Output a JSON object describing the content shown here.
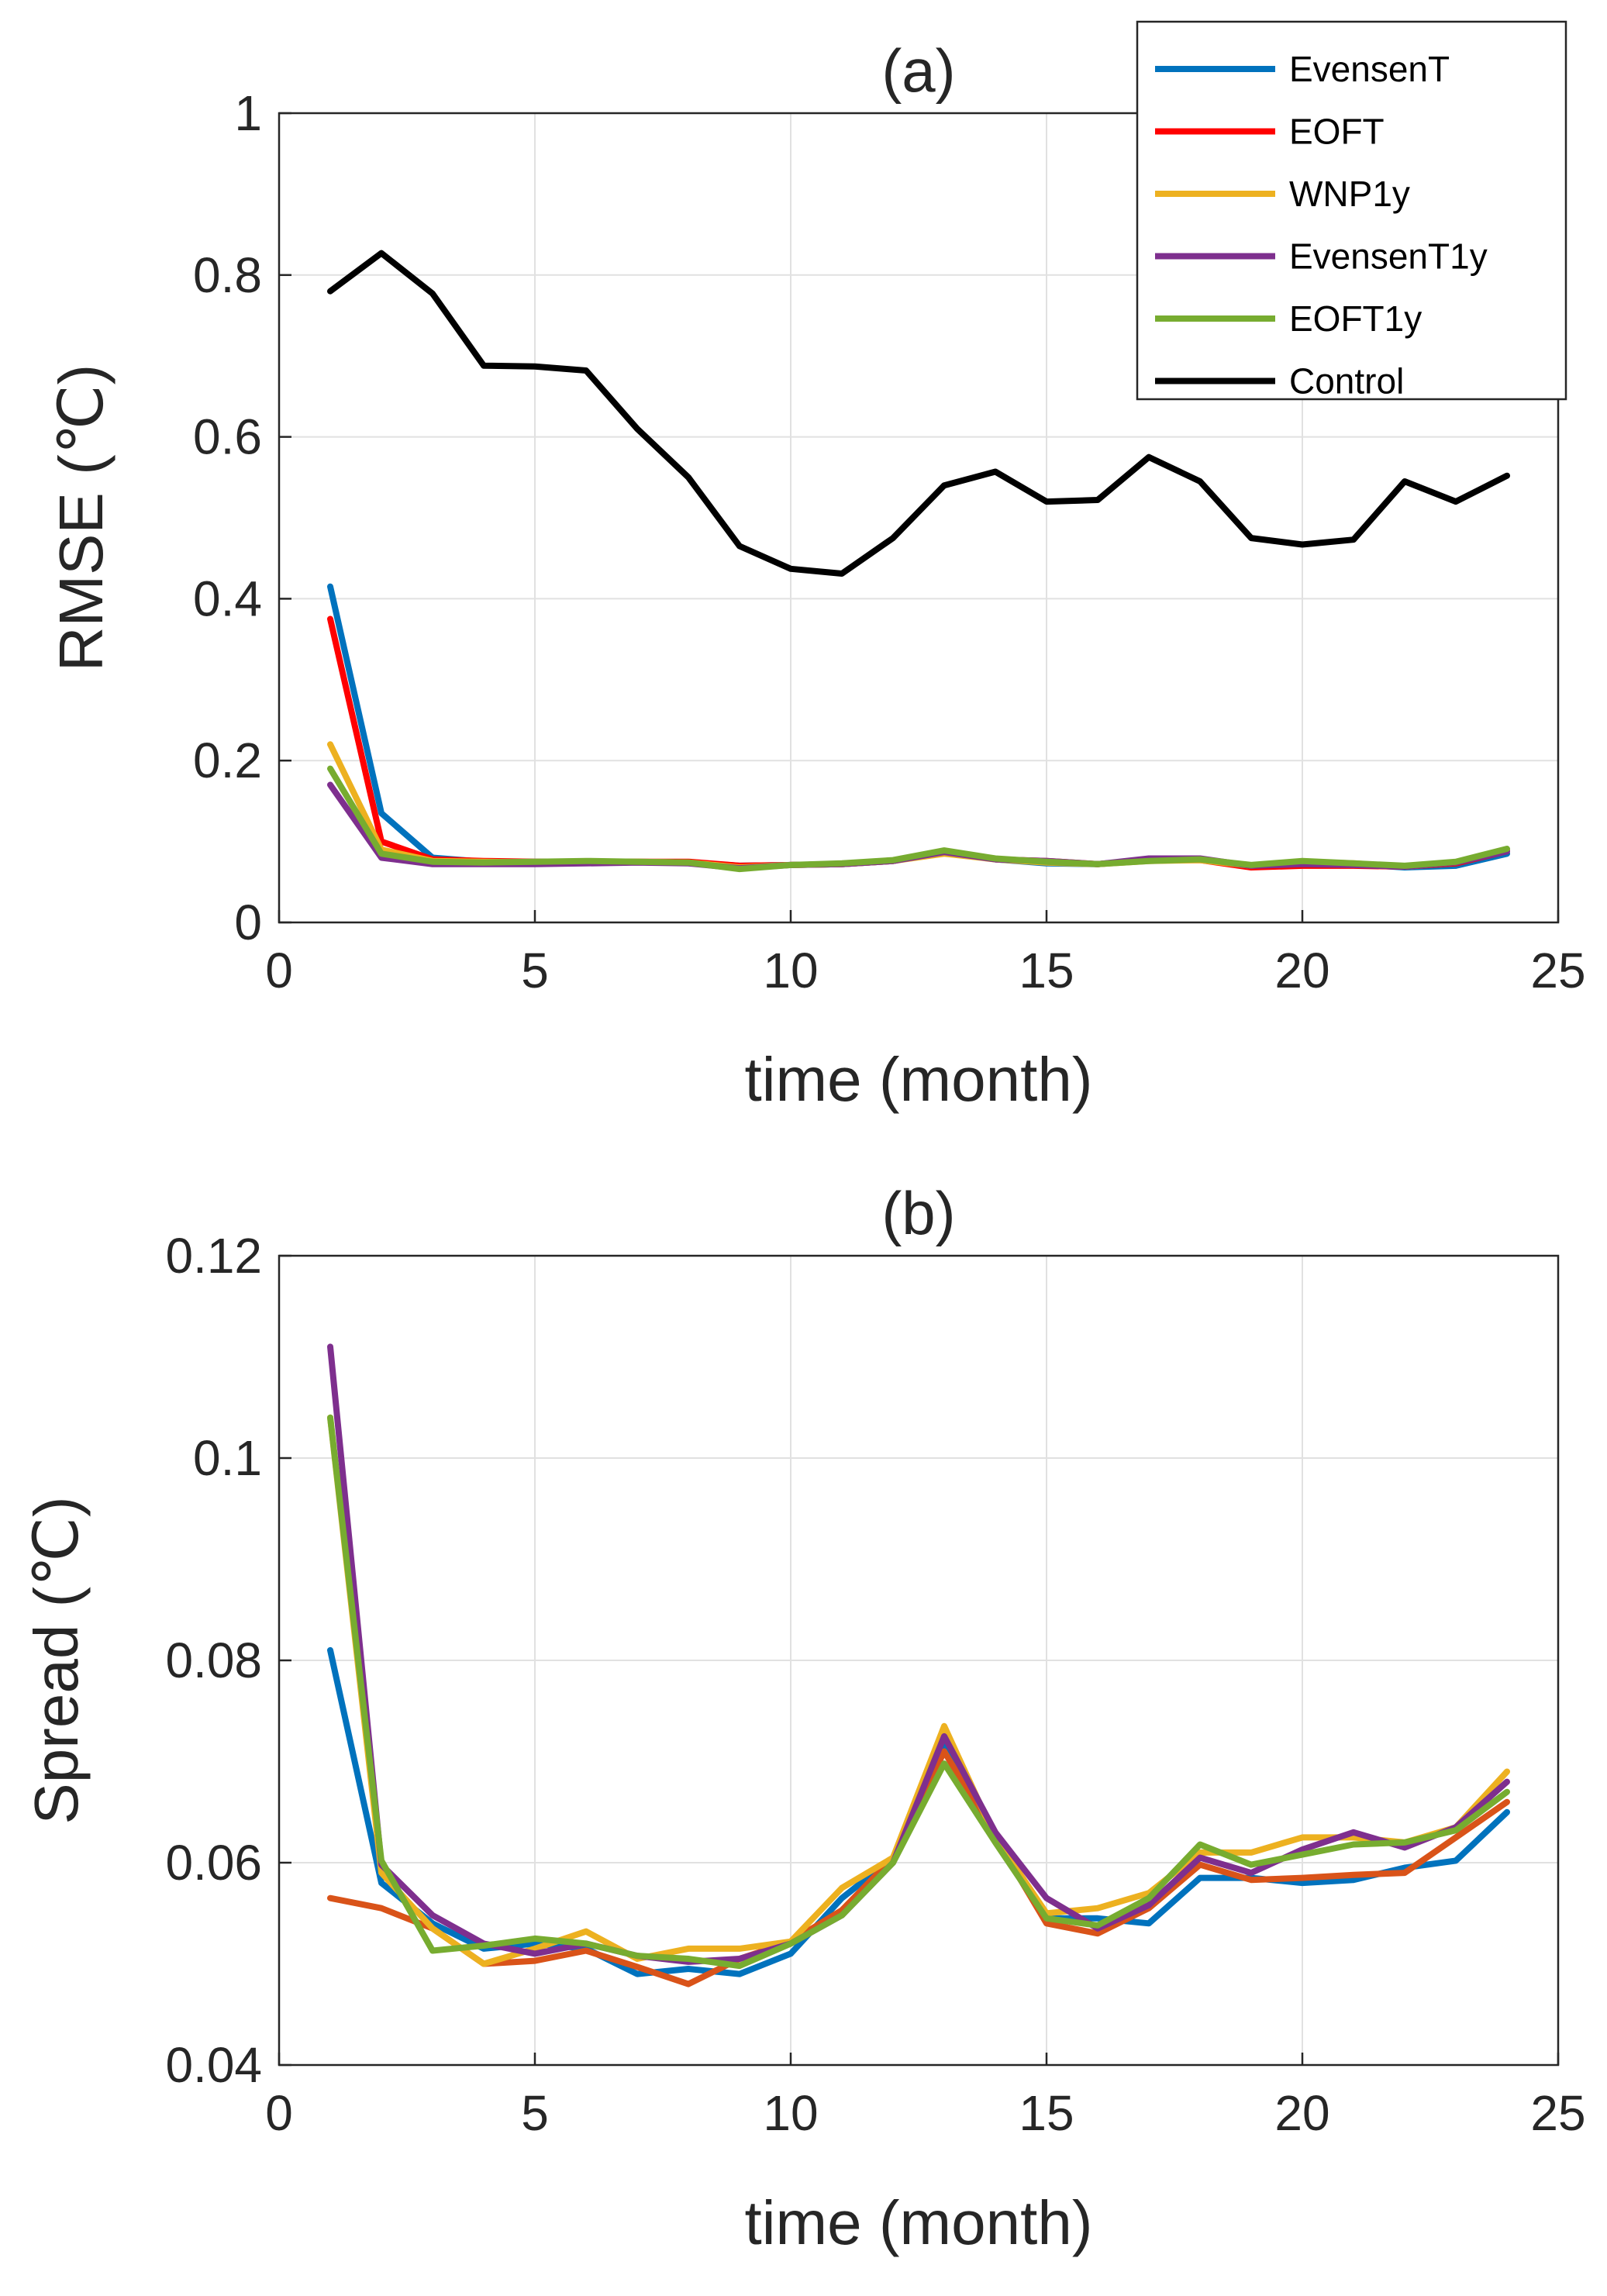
{
  "chart_data": [
    {
      "id": "a",
      "type": "line",
      "title": "(a)",
      "xlabel": "time (month)",
      "ylabel": "RMSE (℃)",
      "xlim": [
        0,
        25
      ],
      "ylim": [
        0,
        1
      ],
      "xticks": [
        0,
        5,
        10,
        15,
        20,
        25
      ],
      "xtick_labels": [
        "0",
        "5",
        "10",
        "15",
        "20",
        "25"
      ],
      "yticks": [
        0,
        0.2,
        0.4,
        0.6,
        0.8,
        1
      ],
      "ytick_labels": [
        "0",
        "0.2",
        "0.4",
        "0.6",
        "0.8",
        "1"
      ],
      "grid": true,
      "legend_position": "top-right",
      "x": [
        1,
        2,
        3,
        4,
        5,
        6,
        7,
        8,
        9,
        10,
        11,
        12,
        13,
        14,
        15,
        16,
        17,
        18,
        19,
        20,
        21,
        22,
        23,
        24
      ],
      "series": [
        {
          "name": "EvensenT",
          "color": "#0072BD",
          "values": [
            0.415,
            0.135,
            0.08,
            0.075,
            0.075,
            0.075,
            0.075,
            0.074,
            0.07,
            0.071,
            0.072,
            0.076,
            0.088,
            0.078,
            0.073,
            0.072,
            0.077,
            0.078,
            0.07,
            0.073,
            0.072,
            0.068,
            0.07,
            0.085
          ]
        },
        {
          "name": "EOFT",
          "color": "#FF0000",
          "values": [
            0.375,
            0.1,
            0.078,
            0.076,
            0.075,
            0.075,
            0.075,
            0.075,
            0.07,
            0.071,
            0.072,
            0.076,
            0.087,
            0.078,
            0.076,
            0.072,
            0.077,
            0.077,
            0.068,
            0.07,
            0.07,
            0.069,
            0.073,
            0.088
          ]
        },
        {
          "name": "WNP1y",
          "color": "#EDB120",
          "values": [
            0.22,
            0.09,
            0.076,
            0.075,
            0.074,
            0.075,
            0.075,
            0.074,
            0.068,
            0.071,
            0.072,
            0.076,
            0.085,
            0.078,
            0.074,
            0.072,
            0.076,
            0.077,
            0.07,
            0.075,
            0.073,
            0.069,
            0.074,
            0.09
          ]
        },
        {
          "name": "EvensenT1y",
          "color": "#7E2F8E",
          "values": [
            0.17,
            0.08,
            0.072,
            0.072,
            0.072,
            0.073,
            0.074,
            0.073,
            0.067,
            0.071,
            0.072,
            0.076,
            0.087,
            0.078,
            0.076,
            0.072,
            0.079,
            0.079,
            0.07,
            0.072,
            0.071,
            0.069,
            0.074,
            0.088
          ]
        },
        {
          "name": "EOFT1y",
          "color": "#77AC30",
          "values": [
            0.19,
            0.085,
            0.075,
            0.074,
            0.075,
            0.076,
            0.075,
            0.074,
            0.066,
            0.071,
            0.073,
            0.077,
            0.089,
            0.079,
            0.075,
            0.072,
            0.076,
            0.078,
            0.071,
            0.076,
            0.073,
            0.07,
            0.075,
            0.091
          ]
        },
        {
          "name": "Control",
          "color": "#000000",
          "values": [
            0.78,
            0.827,
            0.777,
            0.688,
            0.687,
            0.682,
            0.61,
            0.55,
            0.465,
            0.437,
            0.431,
            0.475,
            0.54,
            0.557,
            0.52,
            0.522,
            0.575,
            0.545,
            0.475,
            0.467,
            0.473,
            0.545,
            0.52,
            0.552
          ]
        }
      ]
    },
    {
      "id": "b",
      "type": "line",
      "title": "(b)",
      "xlabel": "time (month)",
      "ylabel": "Spread (℃)",
      "xlim": [
        0,
        25
      ],
      "ylim": [
        0.04,
        0.12
      ],
      "xticks": [
        0,
        5,
        10,
        15,
        20,
        25
      ],
      "xtick_labels": [
        "0",
        "5",
        "10",
        "15",
        "20",
        "25"
      ],
      "yticks": [
        0.04,
        0.06,
        0.08,
        0.1,
        0.12
      ],
      "ytick_labels": [
        "0.04",
        "0.06",
        "0.08",
        "0.1",
        "0.12"
      ],
      "grid": true,
      "x": [
        1,
        2,
        3,
        4,
        5,
        6,
        7,
        8,
        9,
        10,
        11,
        12,
        13,
        14,
        15,
        16,
        17,
        18,
        19,
        20,
        21,
        22,
        23,
        24
      ],
      "series": [
        {
          "name": "EvensenT",
          "color": "#0072BD",
          "values": [
            0.081,
            0.058,
            0.054,
            0.0515,
            0.052,
            0.0515,
            0.049,
            0.0495,
            0.049,
            0.051,
            0.0565,
            0.0605,
            0.0715,
            0.0625,
            0.0545,
            0.0545,
            0.054,
            0.0585,
            0.0585,
            0.058,
            0.0583,
            0.0595,
            0.0602,
            0.065
          ]
        },
        {
          "name": "EOFT",
          "color": "#D95319",
          "values": [
            0.0565,
            0.0555,
            0.0535,
            0.05,
            0.0503,
            0.0513,
            0.0497,
            0.048,
            0.0505,
            0.0522,
            0.0553,
            0.0605,
            0.071,
            0.0625,
            0.054,
            0.053,
            0.0555,
            0.0598,
            0.0583,
            0.0585,
            0.0588,
            0.059,
            0.0625,
            0.066
          ]
        },
        {
          "name": "WNP1y",
          "color": "#EDB120",
          "values": [
            0.104,
            0.059,
            0.0535,
            0.05,
            0.0515,
            0.0532,
            0.0505,
            0.0515,
            0.0515,
            0.0522,
            0.0575,
            0.0605,
            0.0735,
            0.0625,
            0.055,
            0.0555,
            0.057,
            0.061,
            0.061,
            0.0625,
            0.0625,
            0.062,
            0.0635,
            0.069
          ]
        },
        {
          "name": "EvensenT1y",
          "color": "#7E2F8E",
          "values": [
            0.111,
            0.0598,
            0.0548,
            0.052,
            0.051,
            0.052,
            0.0508,
            0.0502,
            0.0505,
            0.052,
            0.0548,
            0.06,
            0.0725,
            0.063,
            0.0565,
            0.0535,
            0.0558,
            0.0605,
            0.059,
            0.0613,
            0.063,
            0.0615,
            0.0635,
            0.068
          ]
        },
        {
          "name": "EOFT1y",
          "color": "#77AC30",
          "values": [
            0.104,
            0.0602,
            0.0513,
            0.0518,
            0.0525,
            0.052,
            0.0508,
            0.0505,
            0.0498,
            0.052,
            0.0548,
            0.06,
            0.0698,
            0.062,
            0.0545,
            0.0538,
            0.0565,
            0.0618,
            0.0598,
            0.0608,
            0.0618,
            0.062,
            0.0632,
            0.067
          ]
        }
      ]
    }
  ]
}
